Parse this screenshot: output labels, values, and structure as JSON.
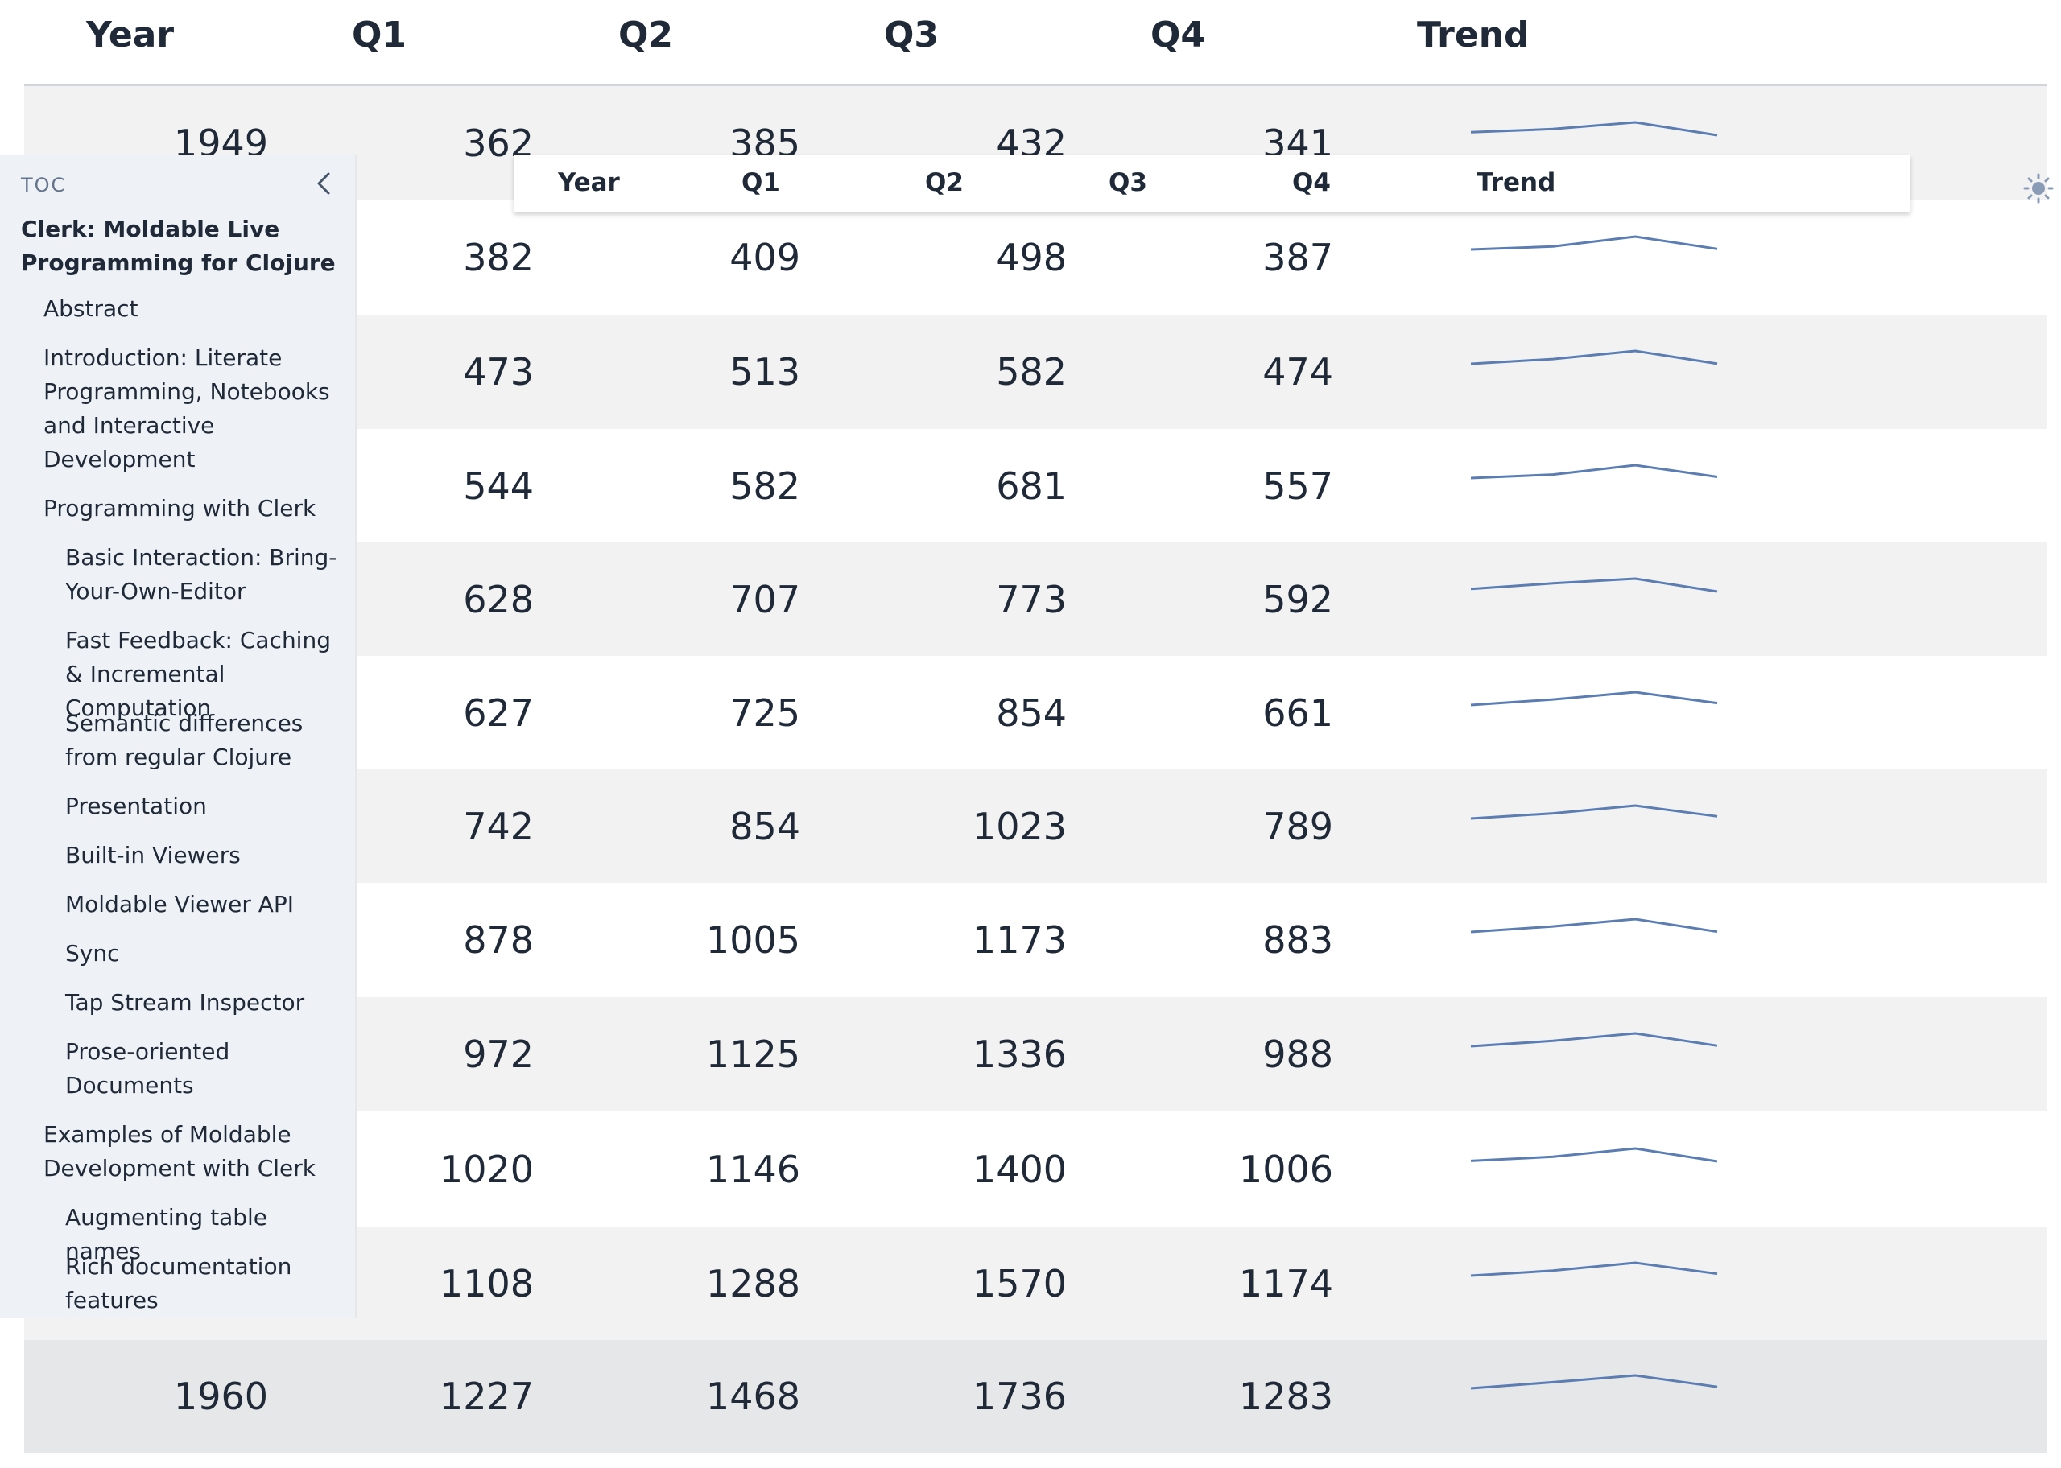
{
  "table": {
    "headers": [
      "Year",
      "Q1",
      "Q2",
      "Q3",
      "Q4",
      "Trend"
    ],
    "rows": [
      {
        "year": "1949",
        "q": [
          "362",
          "385",
          "432",
          "341"
        ],
        "spark": [
          362,
          385,
          432,
          341
        ]
      },
      {
        "year": "",
        "q": [
          "382",
          "409",
          "498",
          "387"
        ],
        "spark": [
          382,
          409,
          498,
          387
        ]
      },
      {
        "year": "",
        "q": [
          "473",
          "513",
          "582",
          "474"
        ],
        "spark": [
          473,
          513,
          582,
          474
        ]
      },
      {
        "year": "",
        "q": [
          "544",
          "582",
          "681",
          "557"
        ],
        "spark": [
          544,
          582,
          681,
          557
        ]
      },
      {
        "year": "",
        "q": [
          "628",
          "707",
          "773",
          "592"
        ],
        "spark": [
          628,
          707,
          773,
          592
        ]
      },
      {
        "year": "",
        "q": [
          "627",
          "725",
          "854",
          "661"
        ],
        "spark": [
          627,
          725,
          854,
          661
        ]
      },
      {
        "year": "",
        "q": [
          "742",
          "854",
          "1023",
          "789"
        ],
        "spark": [
          742,
          854,
          1023,
          789
        ]
      },
      {
        "year": "",
        "q": [
          "878",
          "1005",
          "1173",
          "883"
        ],
        "spark": [
          878,
          1005,
          1173,
          883
        ]
      },
      {
        "year": "",
        "q": [
          "972",
          "1125",
          "1336",
          "988"
        ],
        "spark": [
          972,
          1125,
          1336,
          988
        ]
      },
      {
        "year": "",
        "q": [
          "1020",
          "1146",
          "1400",
          "1006"
        ],
        "spark": [
          1020,
          1146,
          1400,
          1006
        ]
      },
      {
        "year": "",
        "q": [
          "1108",
          "1288",
          "1570",
          "1174"
        ],
        "spark": [
          1108,
          1288,
          1570,
          1174
        ]
      },
      {
        "year": "1960",
        "q": [
          "1227",
          "1468",
          "1736",
          "1283"
        ],
        "spark": [
          1227,
          1468,
          1736,
          1283
        ]
      }
    ]
  },
  "sticky_header": {
    "labels": [
      "Year",
      "Q1",
      "Q2",
      "Q3",
      "Q4",
      "Trend"
    ]
  },
  "toc": {
    "label": "TOC",
    "close_icon": "chevron-left-icon",
    "items": [
      {
        "level": "top",
        "text": "Clerk: Moldable Live Programming for Clojure"
      },
      {
        "level": "l1",
        "text": "Abstract"
      },
      {
        "level": "l1",
        "text": "Introduction: Literate Programming, Notebooks and Interactive Development"
      },
      {
        "level": "l1",
        "text": "Programming with Clerk"
      },
      {
        "level": "l2",
        "text": "Basic Interaction: Bring-Your-Own-Editor"
      },
      {
        "level": "l2",
        "text": "Fast Feedback: Caching & Incremental Computation"
      },
      {
        "level": "l2",
        "text": "Semantic differences from regular Clojure"
      },
      {
        "level": "l2",
        "text": "Presentation"
      },
      {
        "level": "l2",
        "text": "Built-in Viewers"
      },
      {
        "level": "l2",
        "text": "Moldable Viewer API"
      },
      {
        "level": "l2",
        "text": "Sync"
      },
      {
        "level": "l2",
        "text": "Tap Stream Inspector"
      },
      {
        "level": "l2",
        "text": "Prose-oriented Documents"
      },
      {
        "level": "l1",
        "text": "Examples of Moldable Development with Clerk"
      },
      {
        "level": "l2",
        "text": "Augmenting table names"
      },
      {
        "level": "l2",
        "text": "Rich documentation features"
      }
    ]
  },
  "theme_toggle": {
    "icon": "sun-icon"
  },
  "colors": {
    "sparkline": "#5b7db1",
    "row_stripe": "#f2f2f2",
    "toc_bg": "#eef2f7",
    "text": "#1f2937"
  }
}
